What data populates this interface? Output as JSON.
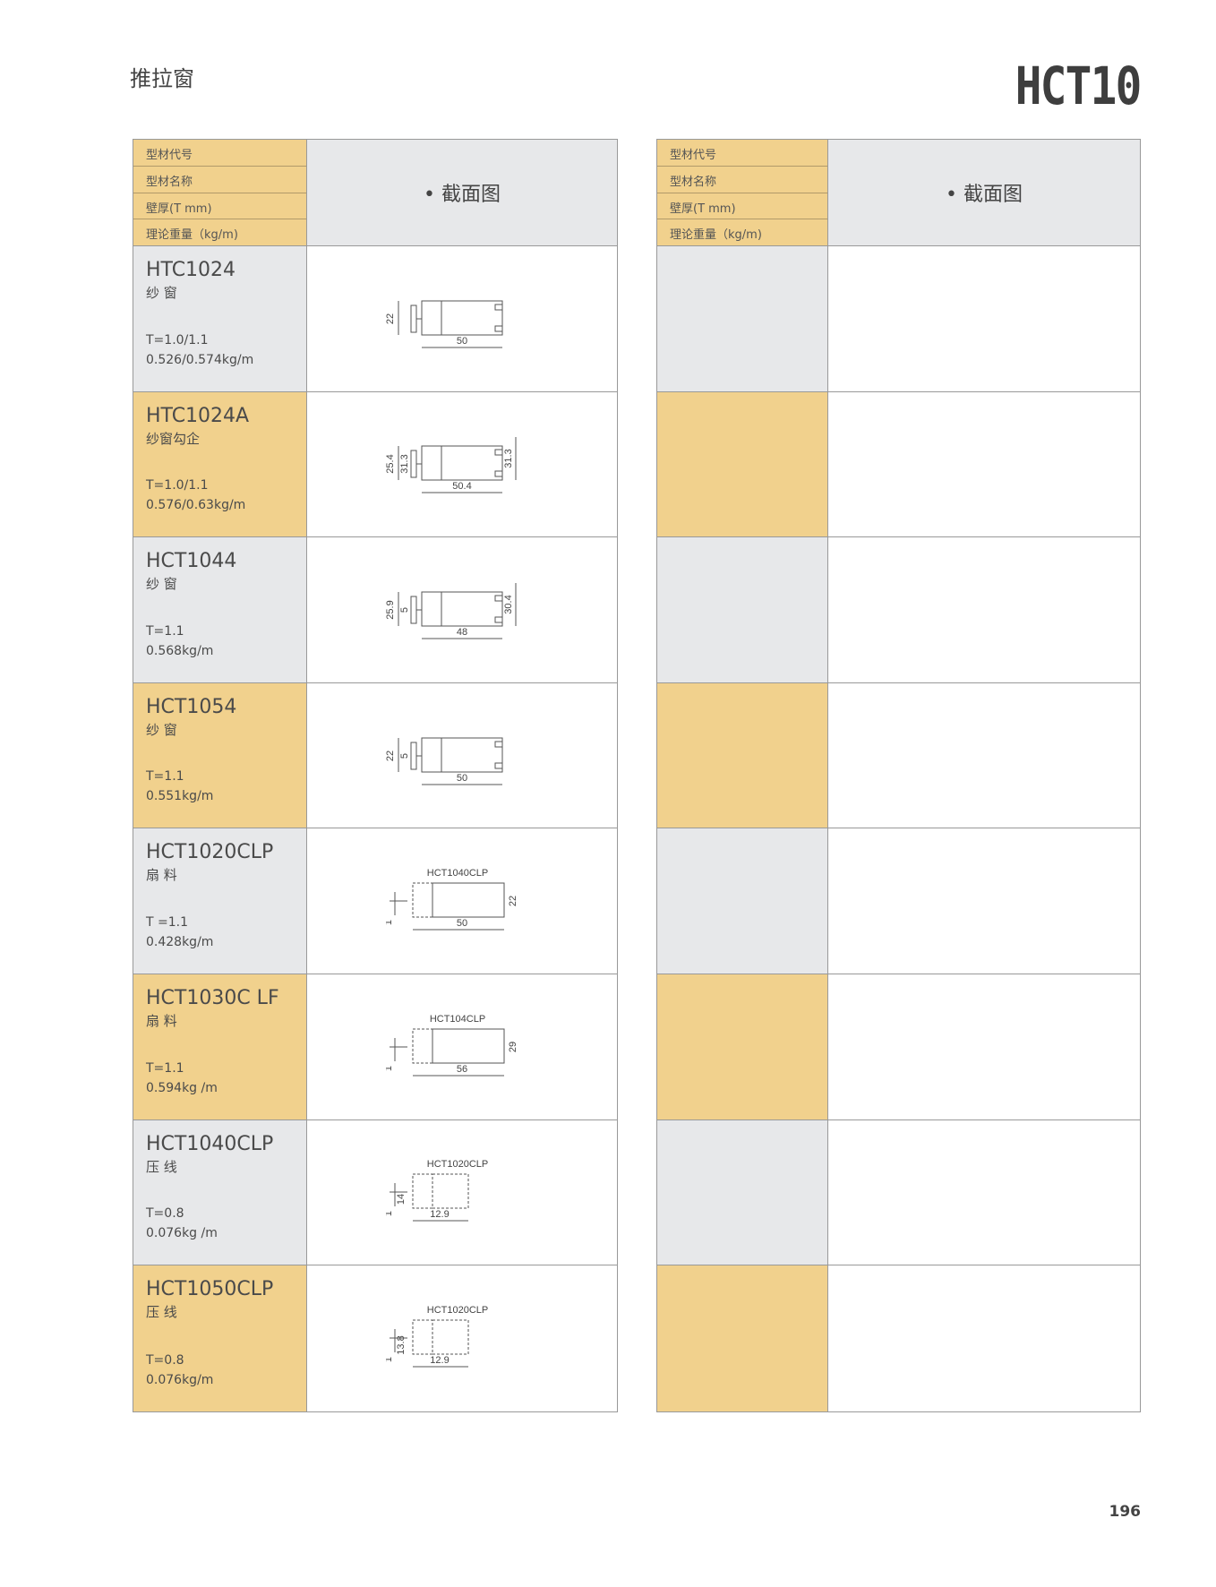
{
  "page": {
    "title": "推拉窗",
    "series_code": "HCT10",
    "page_number": "196"
  },
  "header": {
    "labels": [
      "型材代号",
      "型材名称",
      "壁厚(T mm)",
      "理论重量（kg/m)"
    ],
    "section_label": "• 截面图"
  },
  "rows": [
    {
      "id": "HTC1024",
      "name": "纱 窗",
      "thickness": "T=1.0/1.1",
      "weight": "0.526/0.574kg/m",
      "bg": "gray",
      "dims": [
        "22",
        "50"
      ]
    },
    {
      "id": "HTC1024A",
      "name": "纱窗勾企",
      "thickness": "T=1.0/1.1",
      "weight": "0.576/0.63kg/m",
      "bg": "gold",
      "dims": [
        "25.4",
        "31.3",
        "50.4"
      ]
    },
    {
      "id": "HCT1044",
      "name": "纱 窗",
      "thickness": "T=1.1",
      "weight": "0.568kg/m",
      "bg": "gray",
      "dims": [
        "25.9",
        "5",
        "30.4",
        "48"
      ]
    },
    {
      "id": "HCT1054",
      "name": "纱 窗",
      "thickness": "T=1.1",
      "weight": "0.551kg/m",
      "bg": "gold",
      "dims": [
        "22",
        "5",
        "50"
      ]
    },
    {
      "id": "HCT1020CLP",
      "name": "扇 料",
      "thickness": "T =1.1",
      "weight": "0.428kg/m",
      "bg": "gray",
      "dims": [
        "HCT1040CLP",
        "1",
        "22",
        "50"
      ]
    },
    {
      "id": "HCT1030C LF",
      "name": "扇 料",
      "thickness": "T=1.1",
      "weight": "0.594kg /m",
      "bg": "gold",
      "dims": [
        "HCT104CLP",
        "1",
        "29",
        "56"
      ]
    },
    {
      "id": "HCT1040CLP",
      "name": "压 线",
      "thickness": "T=0.8",
      "weight": "0.076kg /m",
      "bg": "gray",
      "dims": [
        "HCT1020CLP",
        "1",
        "14",
        "12.9"
      ]
    },
    {
      "id": "HCT1050CLP",
      "name": "压 线",
      "thickness": "T=0.8",
      "weight": "0.076kg/m",
      "bg": "gold",
      "dims": [
        "HCT1020CLP",
        "1",
        "13.8",
        "12.9"
      ]
    }
  ],
  "colors": {
    "gold": "#f1d18d",
    "gray": "#e7e8ea"
  }
}
